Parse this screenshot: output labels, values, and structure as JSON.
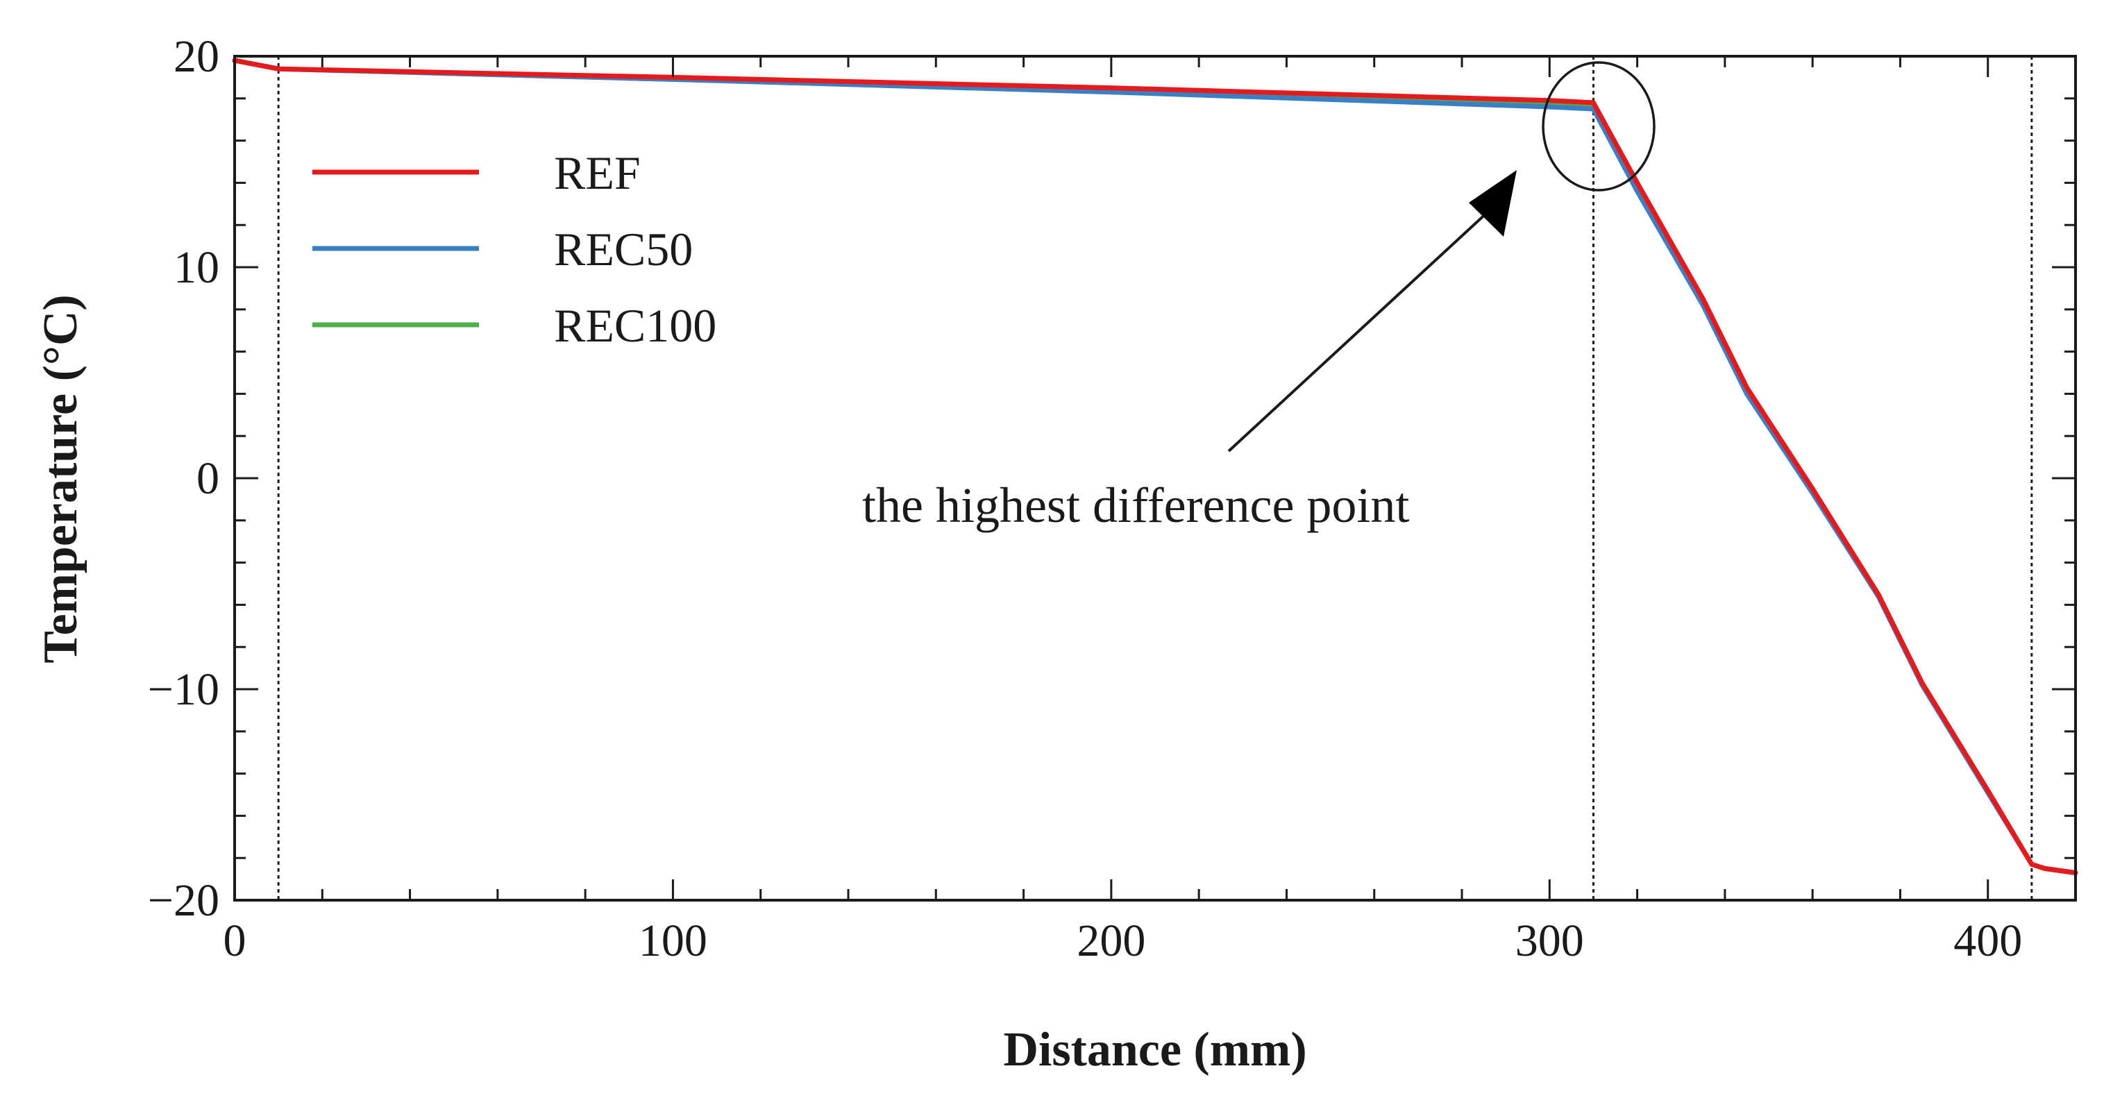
{
  "chart_data": {
    "type": "line",
    "xlabel": "Distance (mm)",
    "ylabel": "Temperature (°C)",
    "xlim": [
      0,
      420
    ],
    "ylim": [
      -20,
      20
    ],
    "x_ticks": [
      0,
      100,
      200,
      300,
      400
    ],
    "x_tick_labels": [
      "0",
      "100",
      "200",
      "300",
      "400"
    ],
    "x_minor_step": 20,
    "y_ticks": [
      -20,
      -10,
      0,
      10,
      20
    ],
    "y_tick_labels": [
      "−20",
      "−10",
      "0",
      "10",
      "20"
    ],
    "y_minor_step": 2,
    "grid": false,
    "legend_position": "top-left",
    "vertical_reference_lines": [
      10,
      310,
      410
    ],
    "series": [
      {
        "name": "REF",
        "color": "#e41a1c",
        "x": [
          0,
          10,
          100,
          200,
          300,
          310,
          320,
          335,
          345,
          360,
          375,
          385,
          400,
          410,
          413,
          420
        ],
        "y": [
          19.8,
          19.4,
          19.0,
          18.5,
          17.9,
          17.8,
          14.0,
          8.5,
          4.3,
          -0.5,
          -5.5,
          -9.7,
          -14.8,
          -18.3,
          -18.5,
          -18.7
        ]
      },
      {
        "name": "REC50",
        "color": "#3a7fc4",
        "x": [
          0,
          10,
          100,
          200,
          300,
          310,
          320,
          335,
          345,
          360,
          375,
          385,
          400,
          410,
          413,
          420
        ],
        "y": [
          19.8,
          19.4,
          18.9,
          18.3,
          17.6,
          17.5,
          13.6,
          8.2,
          4.0,
          -0.7,
          -5.6,
          -9.8,
          -14.9,
          -18.3,
          -18.5,
          -18.7
        ]
      },
      {
        "name": "REC100",
        "color": "#4daf4a",
        "x": [
          0,
          10,
          100,
          200,
          300,
          310,
          320,
          335,
          345,
          360,
          375,
          385,
          400,
          410,
          413,
          420
        ],
        "y": [
          19.8,
          19.4,
          18.9,
          18.35,
          17.7,
          17.6,
          13.8,
          8.3,
          4.1,
          -0.6,
          -5.55,
          -9.75,
          -14.85,
          -18.3,
          -18.5,
          -18.7
        ]
      }
    ],
    "annotation": {
      "text": "the highest difference point",
      "target": [
        310,
        17
      ]
    }
  }
}
